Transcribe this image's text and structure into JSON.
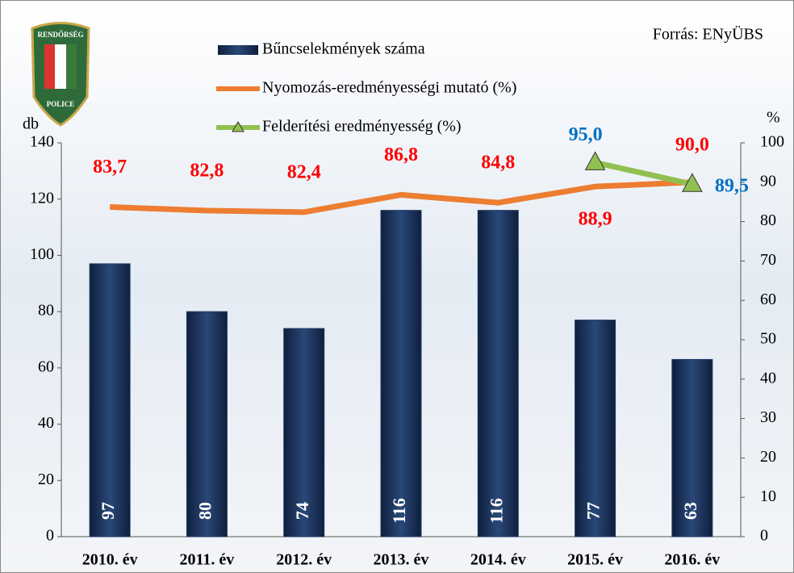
{
  "logo": {
    "top": "RENDŐRSÉG",
    "bottom": "POLICE"
  },
  "chart_data": {
    "type": "bar",
    "source": "Forrás: ENyÜBS",
    "y_label": "db",
    "y2_label": "%",
    "categories": [
      "2010. év",
      "2011. év",
      "2012. év",
      "2013. év",
      "2014. év",
      "2015. év",
      "2016. év"
    ],
    "series": [
      {
        "name": "Bűncselekmények száma",
        "type": "bar",
        "color": "#1f3864",
        "values": [
          97,
          80,
          74,
          116,
          116,
          77,
          63
        ]
      },
      {
        "name": "Nyomozás-eredményességi mutató (%)",
        "type": "line",
        "axis": "y2",
        "color": "#ed7d31",
        "label_color": "#ff0000",
        "values": [
          83.7,
          82.8,
          82.4,
          86.8,
          84.8,
          88.9,
          90.0
        ],
        "value_labels": [
          "83,7",
          "82,8",
          "82,4",
          "86,8",
          "84,8",
          "88,9",
          "90,0"
        ]
      },
      {
        "name": "Felderítési eredményesség (%)",
        "type": "line",
        "axis": "y2",
        "color": "#92c050",
        "marker": "triangle",
        "label_color": "#0070c0",
        "values": [
          null,
          null,
          null,
          null,
          null,
          95.0,
          89.5
        ],
        "value_labels": [
          null,
          null,
          null,
          null,
          null,
          "95,0",
          "89,5"
        ]
      }
    ],
    "ylim": [
      0,
      140
    ],
    "yticks": [
      0,
      20,
      40,
      60,
      80,
      100,
      120,
      140
    ],
    "y2lim": [
      0,
      100
    ],
    "y2ticks": [
      0,
      10,
      20,
      30,
      40,
      50,
      60,
      70,
      80,
      90,
      100
    ]
  }
}
